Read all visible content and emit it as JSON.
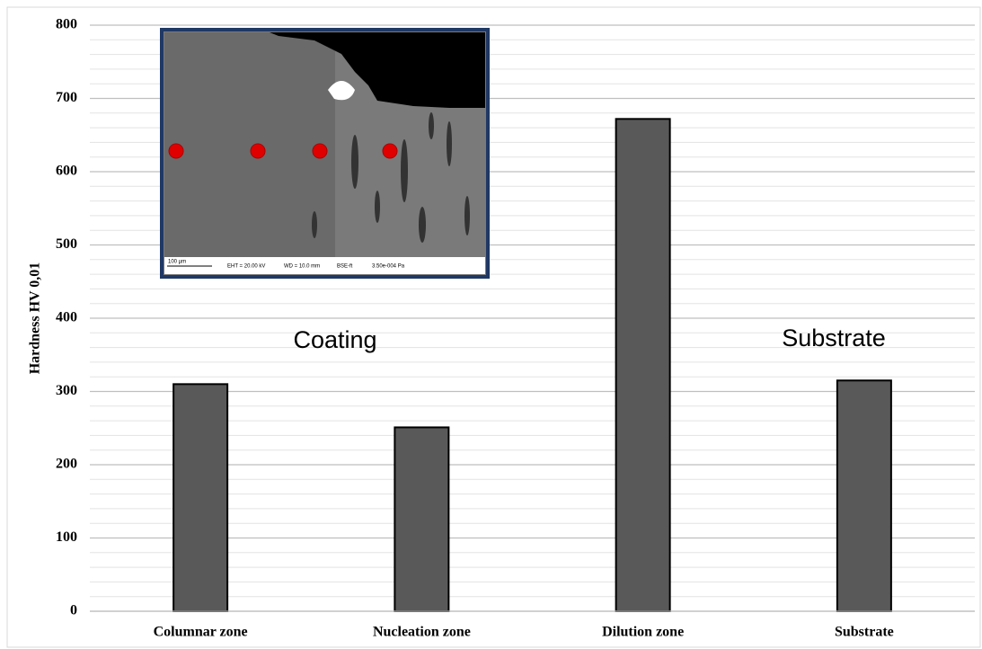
{
  "chart_data": {
    "type": "bar",
    "y_label": "Hardness HV 0,01",
    "categories": [
      "Columnar zone",
      "Nucleation zone",
      "Dilution zone",
      "Substrate"
    ],
    "values": [
      310,
      251,
      672,
      315
    ],
    "color": "#595959",
    "ylim": [
      0,
      800
    ],
    "yticks": [
      0,
      100,
      200,
      300,
      400,
      500,
      600,
      700,
      800
    ],
    "grid": true,
    "annotations": [
      "Coating",
      "Substrate"
    ],
    "inset": {
      "scale_bar": "100 µm",
      "info": [
        "EHT = 20.00 kV",
        "WD = 10.0 mm",
        "BSE-ft",
        "3.50e-004 Pa"
      ]
    }
  }
}
